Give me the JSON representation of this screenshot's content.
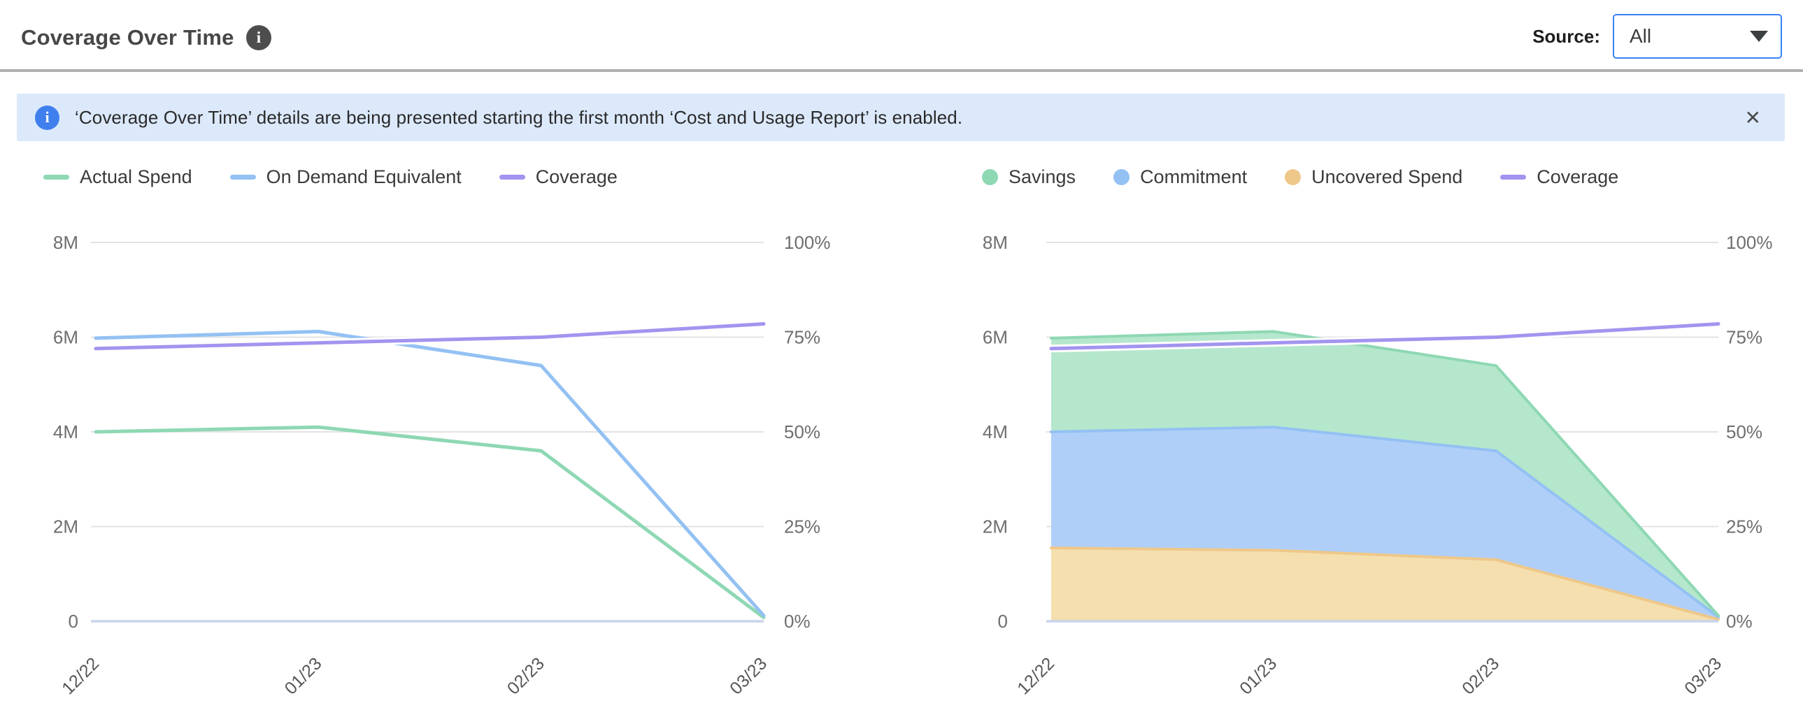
{
  "header": {
    "title": "Coverage Over Time",
    "info_glyph": "i",
    "source_label": "Source:",
    "source_value": "All"
  },
  "banner": {
    "icon_glyph": "i",
    "text": "‘Coverage Over Time’ details are being presented starting the first month ‘Cost and Usage Report’ is enabled.",
    "close_glyph": "✕"
  },
  "colors": {
    "accent_blue": "#3b82f6",
    "banner_bg": "#dce9fb",
    "banner_icon": "#4080ee",
    "divider": "#b0b0b0",
    "grid": "#e3e3e3",
    "zero_axis": "#c9d4ec",
    "green": "#8ed8b4",
    "blue": "#93c1f3",
    "purple": "#a294ef",
    "orange": "#eec88a",
    "green_fill": "#b5e7cd",
    "blue_fill": "#b0cff8",
    "orange_fill": "#f5dfae"
  },
  "chart_data": [
    {
      "type": "line",
      "title": "Coverage Over Time — spend lines",
      "categories": [
        "12/22",
        "01/23",
        "02/23",
        "03/23"
      ],
      "y_left": {
        "ticks": [
          "8M",
          "6M",
          "4M",
          "2M",
          "0"
        ],
        "max_millions": 8,
        "units": "USD millions"
      },
      "y_right": {
        "ticks": [
          "100%",
          "75%",
          "50%",
          "25%",
          "0%"
        ],
        "max_percent": 100
      },
      "grid": true,
      "legend_position": "top-left",
      "series": [
        {
          "name": "Actual Spend",
          "kind": "line",
          "axis": "left",
          "swatch": "line",
          "color": "#8ed8b4",
          "values_millions": [
            4.0,
            4.1,
            3.6,
            0.08
          ]
        },
        {
          "name": "On Demand Equivalent",
          "kind": "line",
          "axis": "left",
          "swatch": "line",
          "color": "#93c1f3",
          "values_millions": [
            5.98,
            6.12,
            5.4,
            0.12
          ]
        },
        {
          "name": "Coverage",
          "kind": "line",
          "axis": "right",
          "swatch": "line",
          "color": "#a294ef",
          "halo": true,
          "values_percent": [
            72,
            73.5,
            75,
            78.5
          ]
        }
      ]
    },
    {
      "type": "area",
      "title": "Coverage Over Time — stacked spend breakdown",
      "categories": [
        "12/22",
        "01/23",
        "02/23",
        "03/23"
      ],
      "y_left": {
        "ticks": [
          "8M",
          "6M",
          "4M",
          "2M",
          "0"
        ],
        "max_millions": 8,
        "units": "USD millions"
      },
      "y_right": {
        "ticks": [
          "100%",
          "75%",
          "50%",
          "25%",
          "0%"
        ],
        "max_percent": 100
      },
      "grid": true,
      "legend_position": "top-left",
      "series": [
        {
          "name": "Savings",
          "kind": "area",
          "stack_order": 2,
          "swatch": "dot",
          "color": "#8ed8b4",
          "fill": "#b5e7cd",
          "values_millions": [
            1.98,
            2.02,
            1.8,
            0.03
          ]
        },
        {
          "name": "Commitment",
          "kind": "area",
          "stack_order": 1,
          "swatch": "dot",
          "color": "#93c1f3",
          "fill": "#b0cff8",
          "values_millions": [
            2.45,
            2.6,
            2.3,
            0.05
          ]
        },
        {
          "name": "Uncovered Spend",
          "kind": "area",
          "stack_order": 0,
          "swatch": "dot",
          "color": "#eec88a",
          "fill": "#f5dfae",
          "values_millions": [
            1.55,
            1.5,
            1.3,
            0.04
          ]
        },
        {
          "name": "Coverage",
          "kind": "line",
          "axis": "right",
          "swatch": "line",
          "color": "#a294ef",
          "halo": true,
          "values_percent": [
            72,
            73.5,
            75,
            78.5
          ]
        }
      ]
    }
  ]
}
